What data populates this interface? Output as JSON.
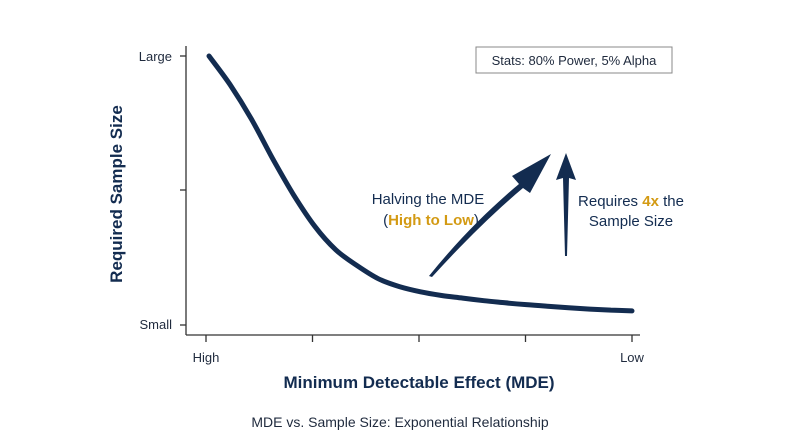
{
  "chart_data": {
    "type": "line",
    "title": "MDE vs. Sample Size: Exponential Relationship",
    "xlabel": "Minimum Detectable Effect (MDE)",
    "ylabel": "Required Sample Size",
    "x_ticks": [
      "High",
      "",
      "",
      "",
      "Low"
    ],
    "y_ticks": [
      "Small",
      "",
      "Large"
    ],
    "grid": false,
    "legend": "none",
    "series": [
      {
        "color": "#132c50",
        "x": [
          0.0,
          0.05,
          0.1,
          0.15,
          0.2,
          0.25,
          0.3,
          0.35,
          0.4,
          0.45,
          0.5,
          0.55,
          0.6,
          0.65,
          0.7,
          0.75,
          0.8,
          0.85,
          0.9,
          0.95,
          1.0
        ],
        "y": [
          1.0,
          0.89,
          0.76,
          0.61,
          0.47,
          0.35,
          0.26,
          0.2,
          0.15,
          0.12,
          0.1,
          0.086,
          0.076,
          0.066,
          0.058,
          0.051,
          0.045,
          0.039,
          0.034,
          0.03,
          0.027
        ]
      }
    ],
    "stats_box": "Stats: 80% Power, 5% Alpha",
    "annotations": {
      "left_line1": "Halving the MDE",
      "left_paren_open": "(",
      "left_highlight": "High to Low",
      "left_paren_close": ")",
      "right_prefix": "Requires ",
      "right_highlight": "4x",
      "right_suffix": " the",
      "right_line2": "Sample Size"
    },
    "colors": {
      "line": "#132c50",
      "highlight": "#d39a13",
      "axis": "#333333"
    }
  }
}
